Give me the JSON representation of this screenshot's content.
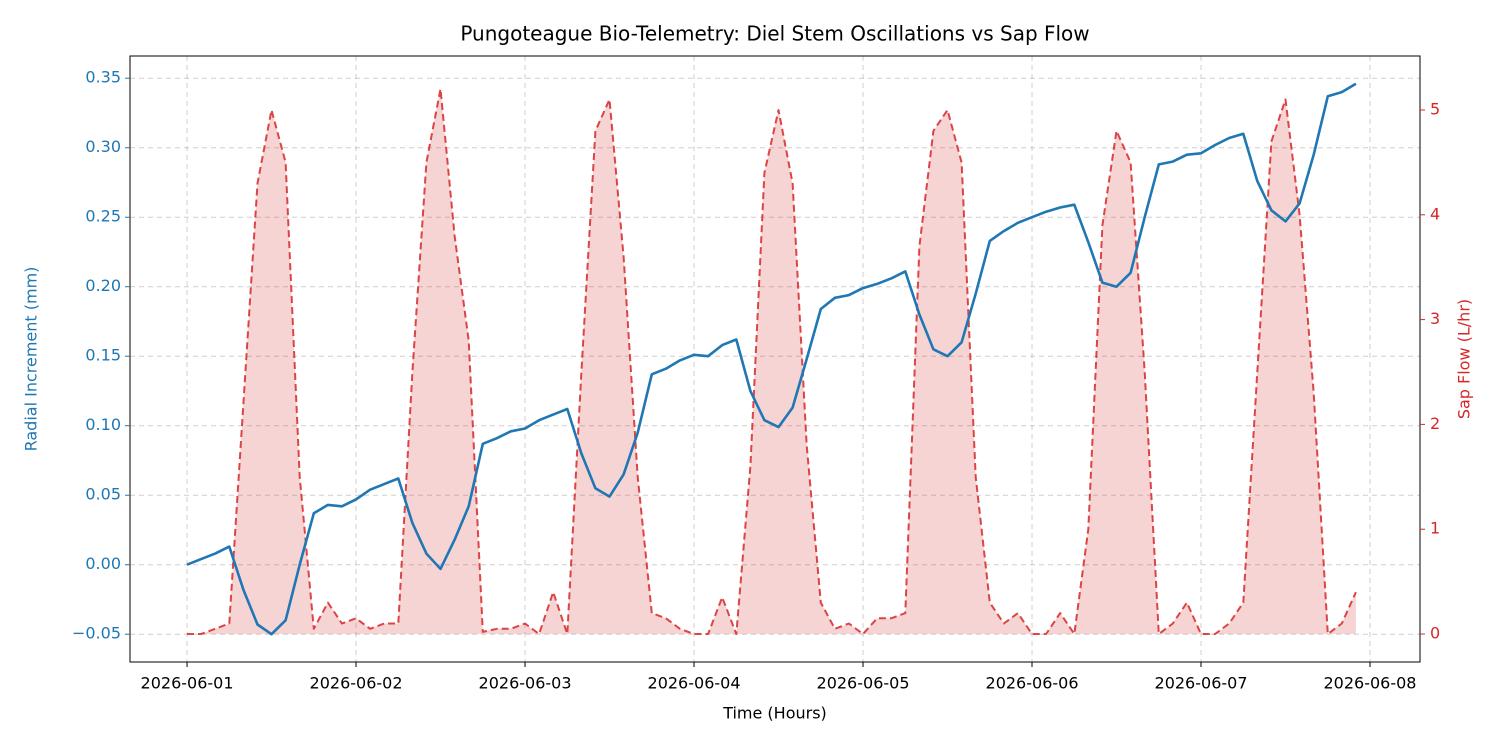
{
  "chart_data": {
    "type": "line",
    "title": "Pungoteague Bio-Telemetry: Diel Stem Oscillations vs Sap Flow",
    "xlabel": "Time (Hours)",
    "ylabel": "Radial Increment (mm)",
    "y2label": "Sap Flow (L/hr)",
    "x": [
      0,
      2,
      4,
      6,
      8,
      10,
      12,
      14,
      16,
      18,
      20,
      22,
      24,
      26,
      28,
      30,
      32,
      34,
      36,
      38,
      40,
      42,
      44,
      46,
      48,
      50,
      52,
      54,
      56,
      58,
      60,
      62,
      64,
      66,
      68,
      70,
      72,
      74,
      76,
      78,
      80,
      82,
      84,
      86,
      88,
      90,
      92,
      94,
      96,
      98,
      100,
      102,
      104,
      106,
      108,
      110,
      112,
      114,
      116,
      118,
      120,
      122,
      124,
      126,
      128,
      130,
      132,
      134,
      136,
      138,
      140,
      142,
      144,
      146,
      148,
      150,
      152,
      154,
      156,
      158,
      160,
      162,
      164,
      166
    ],
    "series": [
      {
        "name": "Radial Increment (mm)",
        "color": "#1f77b4",
        "values": [
          0,
          0.004,
          0.008,
          0.013,
          -0.018,
          -0.043,
          -0.05,
          -0.04,
          0,
          0.037,
          0.043,
          0.042,
          0.047,
          0.054,
          0.058,
          0.062,
          0.03,
          0.008,
          -0.003,
          0.018,
          0.042,
          0.087,
          0.091,
          0.096,
          0.098,
          0.104,
          0.108,
          0.112,
          0.08,
          0.055,
          0.049,
          0.065,
          0.095,
          0.137,
          0.141,
          0.147,
          0.151,
          0.15,
          0.158,
          0.162,
          0.125,
          0.104,
          0.099,
          0.113,
          0.148,
          0.184,
          0.192,
          0.194,
          0.199,
          0.202,
          0.206,
          0.211,
          0.18,
          0.155,
          0.15,
          0.16,
          0.195,
          0.233,
          0.24,
          0.246,
          0.25,
          0.254,
          0.257,
          0.259,
          0.232,
          0.203,
          0.2,
          0.21,
          0.25,
          0.288,
          0.29,
          0.295,
          0.296,
          0.302,
          0.307,
          0.31,
          0.276,
          0.255,
          0.247,
          0.26,
          0.295,
          0.337,
          0.34,
          0.346
        ]
      },
      {
        "name": "Sap Flow (L/hr)",
        "color": "#d62728",
        "axis": "y2",
        "dashed": true,
        "area": true,
        "values": [
          0,
          0,
          0.05,
          0.1,
          2.2,
          4.3,
          5.0,
          4.5,
          1.5,
          0.05,
          0.3,
          0.1,
          0.15,
          0.05,
          0.1,
          0.1,
          2.5,
          4.5,
          5.2,
          3.8,
          2.8,
          0.02,
          0.05,
          0.05,
          0.1,
          0,
          0.4,
          0,
          2.5,
          4.8,
          5.1,
          3.6,
          1.5,
          0.2,
          0.15,
          0.05,
          0,
          0,
          0.35,
          0,
          1.6,
          4.4,
          5.0,
          4.3,
          1.8,
          0.3,
          0.05,
          0.1,
          0,
          0.15,
          0.15,
          0.2,
          3.7,
          4.8,
          5.0,
          4.5,
          1.5,
          0.3,
          0.1,
          0.2,
          0,
          0,
          0.2,
          0,
          1.0,
          3.9,
          4.8,
          4.5,
          2.5,
          0,
          0.1,
          0.3,
          0,
          0,
          0.1,
          0.3,
          2.5,
          4.7,
          5.1,
          4.0,
          2.3,
          0,
          0.1,
          0.4
        ]
      }
    ],
    "xlim": [
      -8.1,
      175.1
    ],
    "xticks": [
      {
        "value": 0,
        "label": "2026-06-01"
      },
      {
        "value": 24,
        "label": "2026-06-02"
      },
      {
        "value": 48,
        "label": "2026-06-03"
      },
      {
        "value": 72,
        "label": "2026-06-04"
      },
      {
        "value": 96,
        "label": "2026-06-05"
      },
      {
        "value": 120,
        "label": "2026-06-06"
      },
      {
        "value": 144,
        "label": "2026-06-07"
      },
      {
        "value": 168,
        "label": "2026-06-08"
      }
    ],
    "ylim": [
      -0.07,
      0.366
    ],
    "yticks": [
      {
        "value": -0.05,
        "label": "−0.05"
      },
      {
        "value": 0,
        "label": "0.00"
      },
      {
        "value": 0.05,
        "label": "0.05"
      },
      {
        "value": 0.1,
        "label": "0.10"
      },
      {
        "value": 0.15,
        "label": "0.15"
      },
      {
        "value": 0.2,
        "label": "0.20"
      },
      {
        "value": 0.25,
        "label": "0.25"
      },
      {
        "value": 0.3,
        "label": "0.30"
      },
      {
        "value": 0.35,
        "label": "0.35"
      }
    ],
    "y2lim": [
      -0.267,
      5.515
    ],
    "y2ticks": [
      0,
      1,
      2,
      3,
      4,
      5
    ],
    "grid": true
  }
}
